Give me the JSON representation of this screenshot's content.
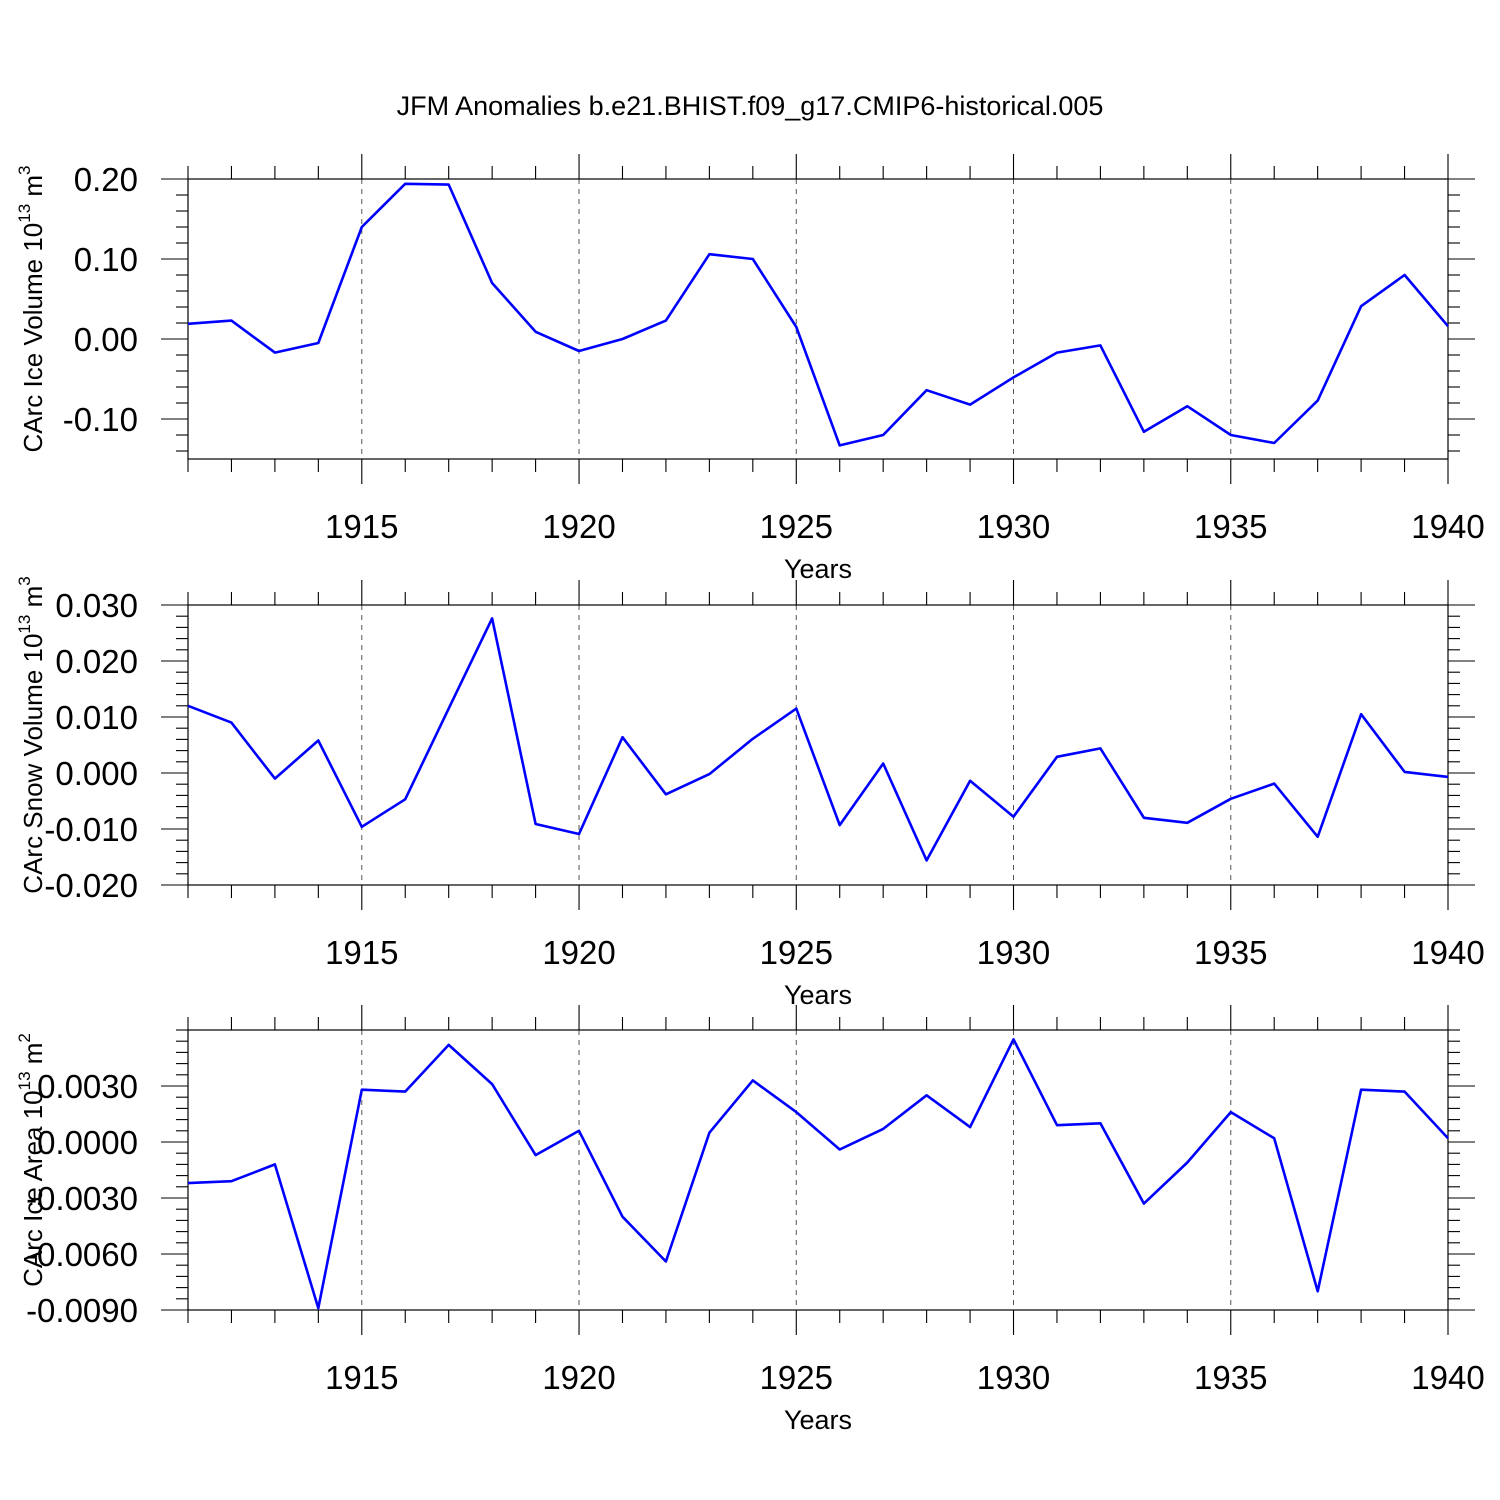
{
  "title": "JFM Anomalies b.e21.BHIST.f09_g17.CMIP6-historical.005",
  "chart_data": [
    {
      "type": "line",
      "name": "ice-volume",
      "ylabel": "CArc Ice Volume 10",
      "ylabel_exp": "13",
      "ylabel_unit": " m",
      "ylabel_unit_exp": "3",
      "xlabel": "Years",
      "xlim": [
        1911,
        1940
      ],
      "ylim": [
        -0.15,
        0.2
      ],
      "yticks": [
        -0.1,
        0.0,
        0.1,
        0.2
      ],
      "ytick_labels": [
        "-0.10",
        "0.00",
        "0.10",
        "0.20"
      ],
      "xticks": [
        1915,
        1920,
        1925,
        1930,
        1935,
        1940
      ],
      "xtick_labels": [
        "1915",
        "1920",
        "1925",
        "1930",
        "1935",
        "1940"
      ],
      "x": [
        1911,
        1912,
        1913,
        1914,
        1915,
        1916,
        1917,
        1918,
        1919,
        1920,
        1921,
        1922,
        1923,
        1924,
        1925,
        1926,
        1927,
        1928,
        1929,
        1930,
        1931,
        1932,
        1933,
        1934,
        1935,
        1936,
        1937,
        1938,
        1939,
        1940
      ],
      "values": [
        0.019,
        0.023,
        -0.017,
        -0.005,
        0.14,
        0.194,
        0.193,
        0.07,
        0.009,
        -0.015,
        0.0,
        0.023,
        0.106,
        0.1,
        0.015,
        -0.133,
        -0.12,
        -0.064,
        -0.082,
        -0.048,
        -0.017,
        -0.008,
        -0.116,
        -0.084,
        -0.12,
        -0.13,
        -0.077,
        0.041,
        0.08,
        0.016
      ]
    },
    {
      "type": "line",
      "name": "snow-volume",
      "ylabel": "CArc Snow Volume 10",
      "ylabel_exp": "13",
      "ylabel_unit": " m",
      "ylabel_unit_exp": "3",
      "xlabel": "Years",
      "xlim": [
        1911,
        1940
      ],
      "ylim": [
        -0.02,
        0.03
      ],
      "yticks": [
        -0.02,
        -0.01,
        0.0,
        0.01,
        0.02,
        0.03
      ],
      "ytick_labels": [
        "-0.020",
        "-0.010",
        "0.000",
        "0.010",
        "0.020",
        "0.030"
      ],
      "xticks": [
        1915,
        1920,
        1925,
        1930,
        1935,
        1940
      ],
      "xtick_labels": [
        "1915",
        "1920",
        "1925",
        "1930",
        "1935",
        "1940"
      ],
      "x": [
        1911,
        1912,
        1913,
        1914,
        1915,
        1916,
        1917,
        1918,
        1919,
        1920,
        1921,
        1922,
        1923,
        1924,
        1925,
        1926,
        1927,
        1928,
        1929,
        1930,
        1931,
        1932,
        1933,
        1934,
        1935,
        1936,
        1937,
        1938,
        1939,
        1940
      ],
      "values": [
        0.012,
        0.009,
        -0.001,
        0.0058,
        -0.0096,
        -0.0047,
        0.0115,
        0.0276,
        -0.0091,
        -0.0109,
        0.0064,
        -0.0038,
        -0.0002,
        0.0061,
        0.0115,
        -0.0093,
        0.0017,
        -0.0156,
        -0.0014,
        -0.0078,
        0.0029,
        0.0044,
        -0.008,
        -0.0089,
        -0.0046,
        -0.0019,
        -0.0114,
        0.0105,
        0.0002,
        -0.0007
      ]
    },
    {
      "type": "line",
      "name": "ice-area",
      "ylabel": "CArc Ice Area 10",
      "ylabel_exp": "13",
      "ylabel_unit": " m",
      "ylabel_unit_exp": "2",
      "xlabel": "Years",
      "xlim": [
        1911,
        1940
      ],
      "ylim": [
        -0.009,
        0.006
      ],
      "yticks": [
        -0.009,
        -0.006,
        -0.003,
        0.0,
        0.003
      ],
      "ytick_labels": [
        "-0.0090",
        "-0.0060",
        "-0.0030",
        "0.0000",
        "0.0030"
      ],
      "xticks": [
        1915,
        1920,
        1925,
        1930,
        1935,
        1940
      ],
      "xtick_labels": [
        "1915",
        "1920",
        "1925",
        "1930",
        "1935",
        "1940"
      ],
      "x": [
        1911,
        1912,
        1913,
        1914,
        1915,
        1916,
        1917,
        1918,
        1919,
        1920,
        1921,
        1922,
        1923,
        1924,
        1925,
        1926,
        1927,
        1928,
        1929,
        1930,
        1931,
        1932,
        1933,
        1934,
        1935,
        1936,
        1937,
        1938,
        1939,
        1940
      ],
      "values": [
        -0.0022,
        -0.0021,
        -0.0012,
        -0.0089,
        0.0028,
        0.0027,
        0.0052,
        0.0031,
        -0.0007,
        0.0006,
        -0.004,
        -0.0064,
        0.0005,
        0.0033,
        0.0016,
        -0.0004,
        0.0007,
        0.0025,
        0.0008,
        0.0055,
        0.0009,
        0.001,
        -0.0033,
        -0.0011,
        0.0016,
        0.0002,
        -0.008,
        0.0028,
        0.0027,
        0.0002
      ]
    }
  ]
}
